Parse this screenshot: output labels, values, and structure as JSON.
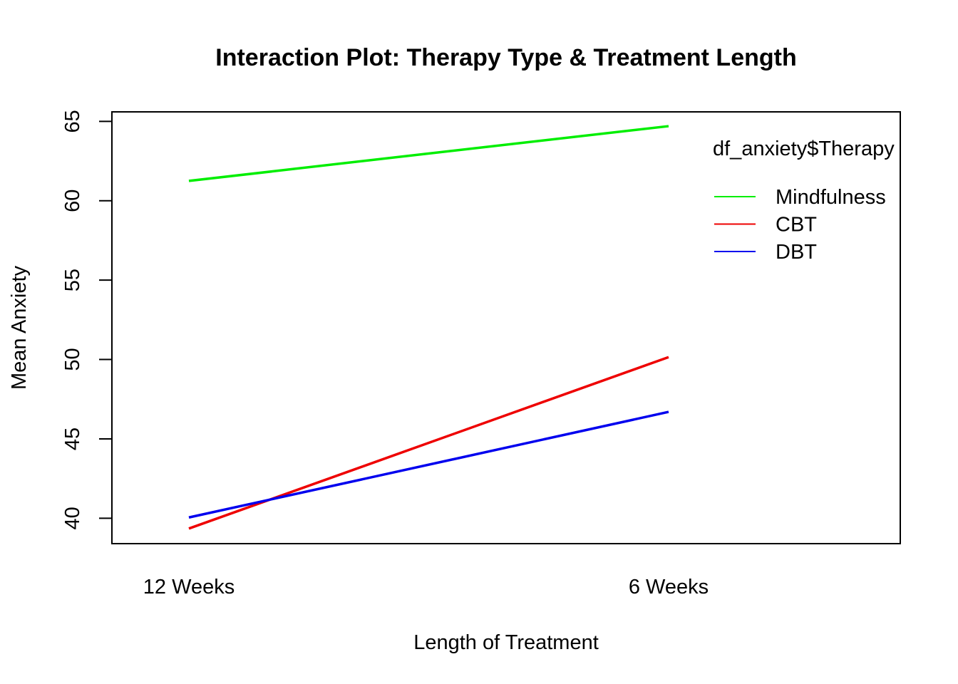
{
  "chart_data": {
    "type": "line",
    "title": "Interaction Plot: Therapy Type & Treatment Length",
    "xlabel": "Length of Treatment",
    "ylabel": "Mean Anxiety",
    "categories": [
      "12 Weeks",
      "6 Weeks"
    ],
    "ylim": [
      38.4,
      65.6
    ],
    "yticks": [
      40,
      45,
      50,
      55,
      60,
      65
    ],
    "grid": false,
    "legend": {
      "title": "df_anxiety$Therapy",
      "placement": "top-right"
    },
    "series": [
      {
        "name": "Mindfulness",
        "color": "#00ee00",
        "values": [
          61.25,
          64.7
        ]
      },
      {
        "name": "CBT",
        "color": "#ee0000",
        "values": [
          39.35,
          50.15
        ]
      },
      {
        "name": "DBT",
        "color": "#0000ee",
        "values": [
          40.05,
          46.7
        ]
      }
    ]
  }
}
